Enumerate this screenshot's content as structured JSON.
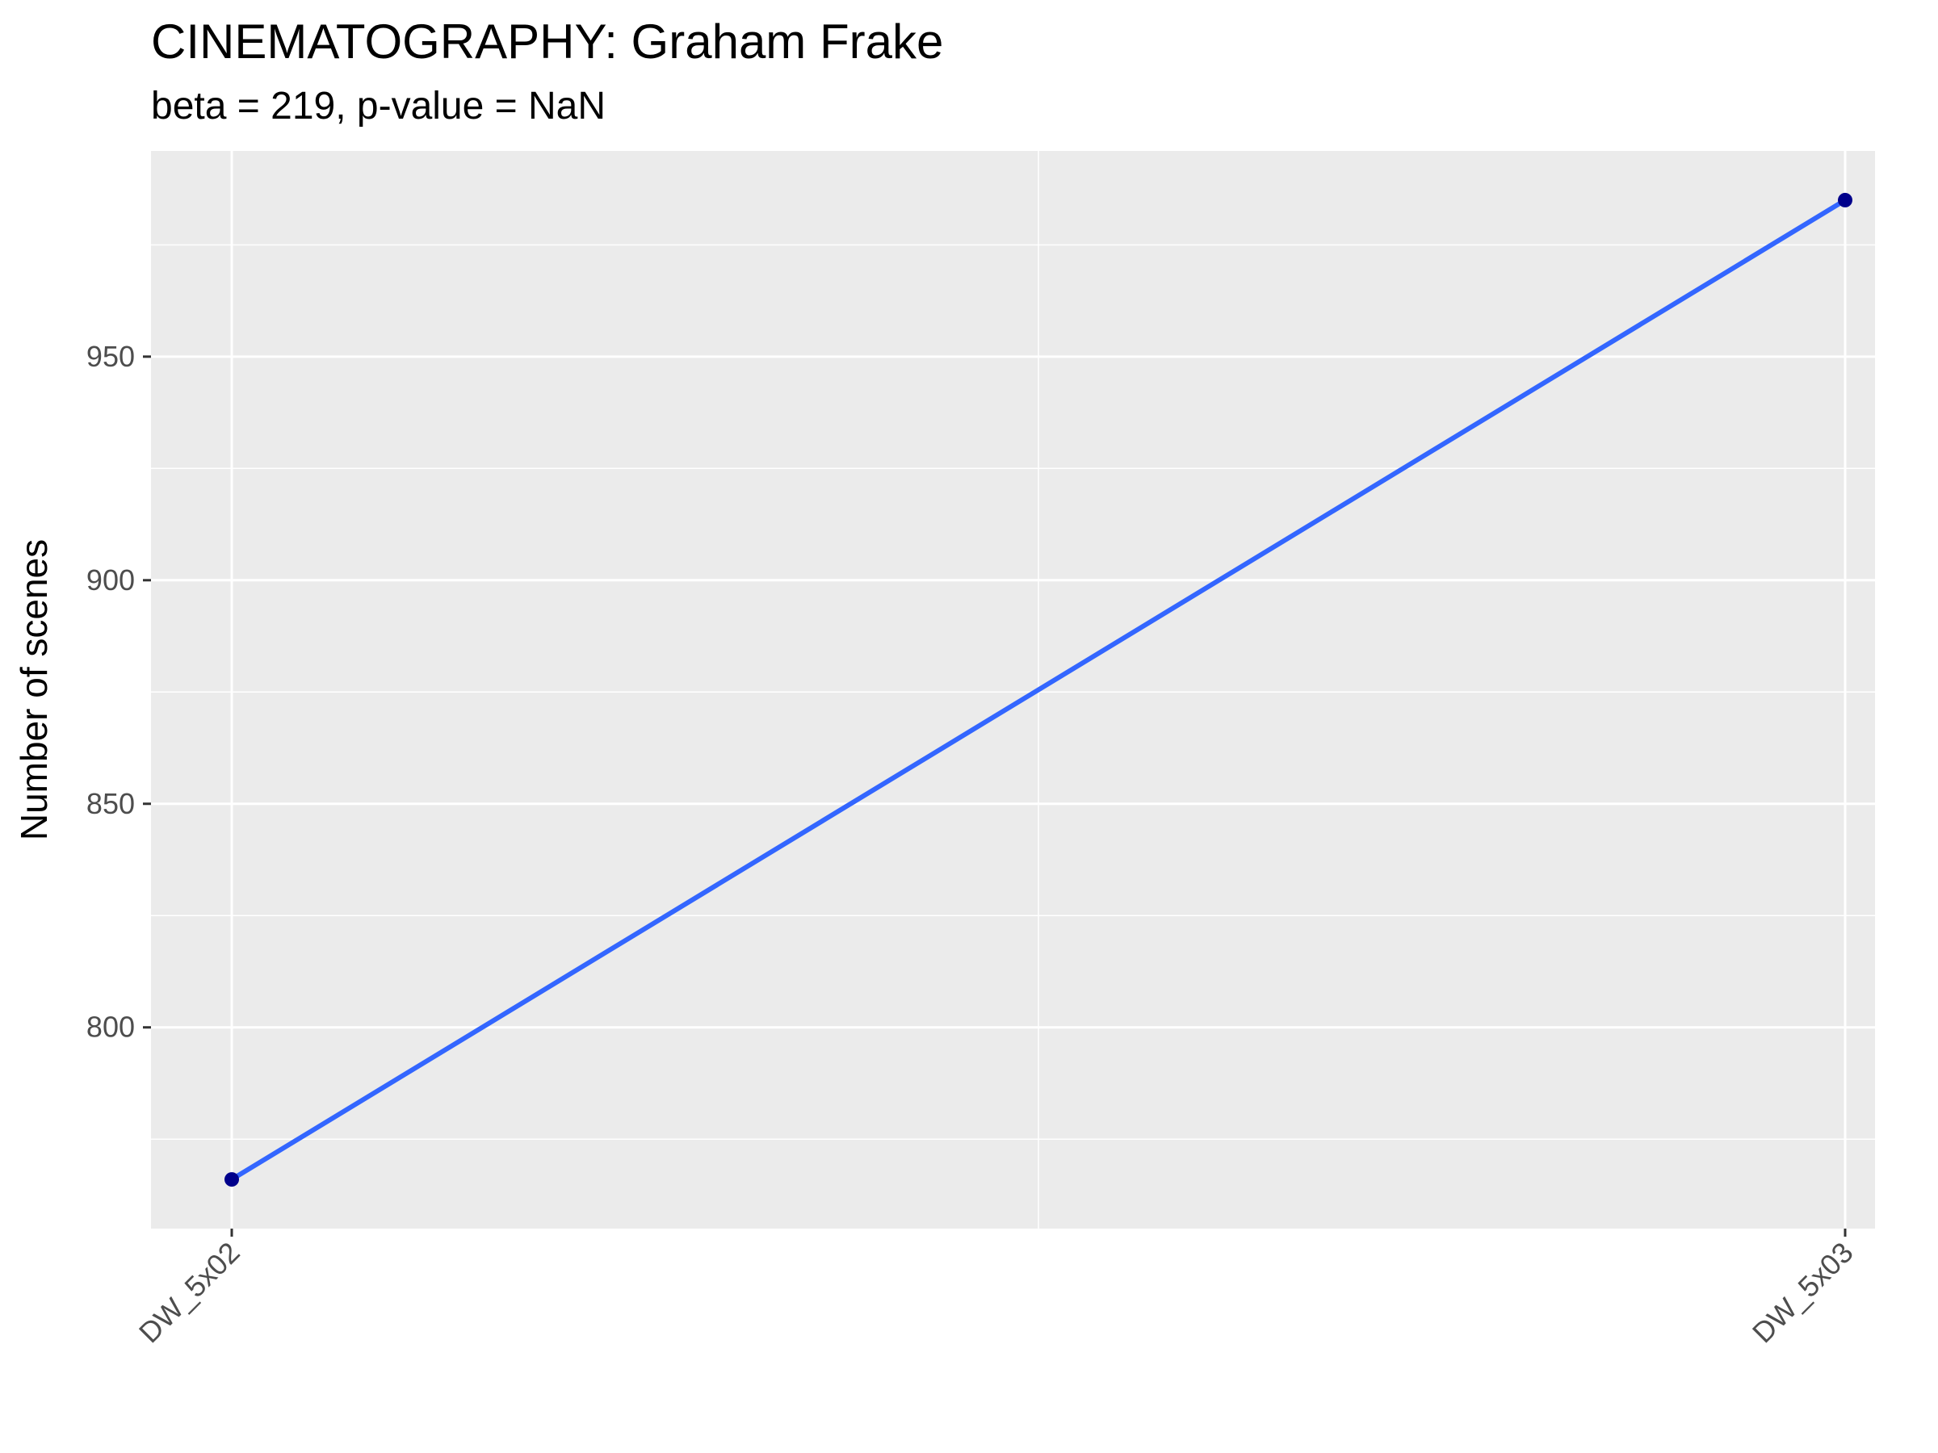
{
  "chart_data": {
    "type": "line",
    "title": "CINEMATOGRAPHY: Graham Frake",
    "subtitle": "beta = 219, p-value = NaN",
    "xlabel": "",
    "ylabel": "Number of scenes",
    "categories": [
      "DW_5x02",
      "DW_5x03"
    ],
    "series": [
      {
        "values": [
          766,
          985
        ]
      }
    ],
    "ylim": [
      755,
      996
    ],
    "yticks": [
      800,
      850,
      900,
      950
    ],
    "grid": true,
    "legend": "none"
  },
  "colors": {
    "panel_background": "#ebebeb",
    "gridline": "#ffffff",
    "line": "#3366ff",
    "point": "#00008b",
    "tick_text": "#4d4d4d"
  }
}
